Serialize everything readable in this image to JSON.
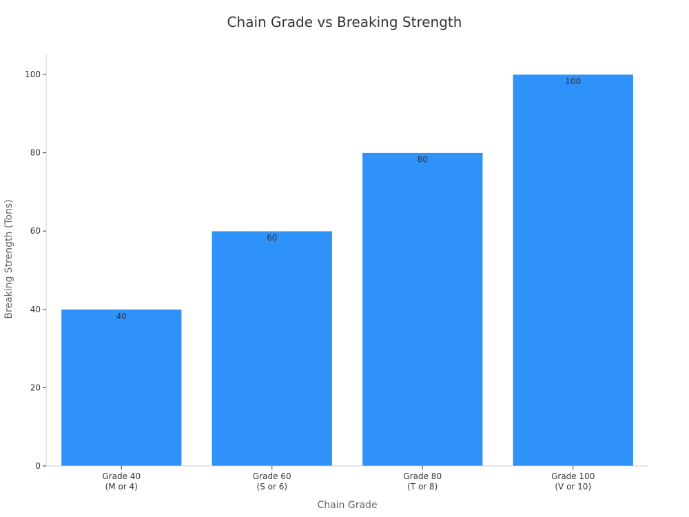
{
  "chart_data": {
    "type": "bar",
    "title": "Chain Grade vs Breaking Strength",
    "xlabel": "Chain Grade",
    "ylabel": "Breaking Strength (Tons)",
    "categories": [
      [
        "Grade 40",
        "(M or 4)"
      ],
      [
        "Grade 60",
        "(S or 6)"
      ],
      [
        "Grade 80",
        "(T or 8)"
      ],
      [
        "Grade 100",
        "(V or 10)"
      ]
    ],
    "values": [
      40,
      60,
      80,
      100
    ],
    "data_labels": [
      "40",
      "60",
      "80",
      "100"
    ],
    "yticks": [
      0,
      20,
      40,
      60,
      80,
      100
    ],
    "ylim": [
      0,
      100
    ],
    "grid": false,
    "bar_color": "#2f92f8"
  }
}
